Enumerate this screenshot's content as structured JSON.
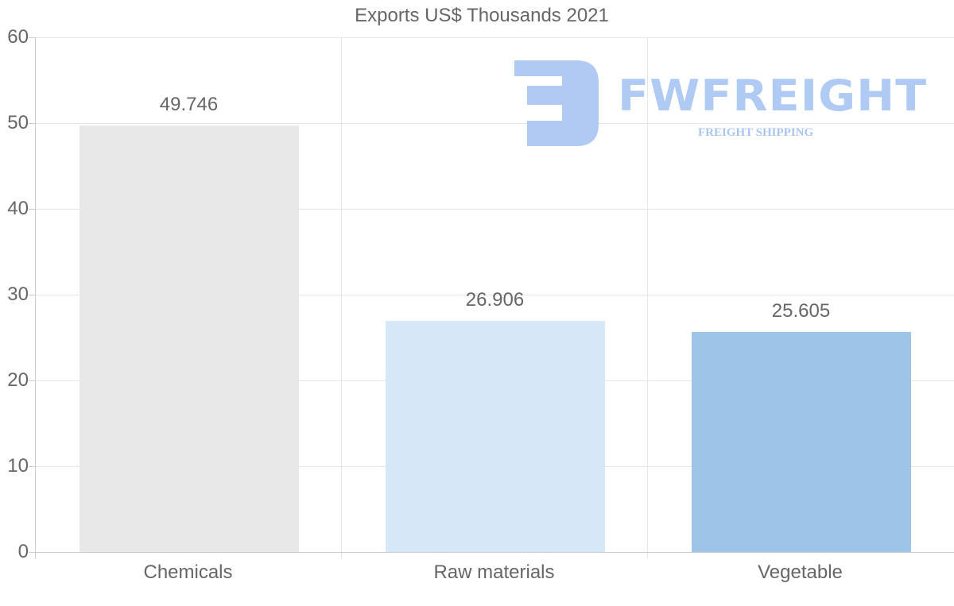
{
  "chart_data": {
    "type": "bar",
    "title": "Exports US$ Thousands 2021",
    "categories": [
      "Chemicals",
      "Raw materials",
      "Vegetable"
    ],
    "values": [
      49.746,
      26.906,
      25.605
    ],
    "value_labels": [
      "49.746",
      "26.906",
      "25.605"
    ],
    "bar_colors": [
      "#e8e8e8",
      "#d6e7f8",
      "#9cc5e7"
    ],
    "xlabel": "",
    "ylabel": "",
    "ylim": [
      0,
      60
    ],
    "yticks": [
      0,
      10,
      20,
      30,
      40,
      50,
      60
    ],
    "ytick_labels": [
      "0",
      "10",
      "20",
      "30",
      "40",
      "50",
      "60"
    ],
    "grid": true,
    "legend": "none"
  },
  "watermark": {
    "brand": "FWFREIGHT",
    "tagline": "FREIGHT SHIPPING",
    "color": "#a9c6f2"
  }
}
